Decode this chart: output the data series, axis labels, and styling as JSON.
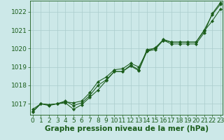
{
  "background_color": "#cce8e8",
  "grid_color": "#aacccc",
  "line_color": "#1a5c1a",
  "marker_color": "#1a5c1a",
  "xlabel": "Graphe pression niveau de la mer (hPa)",
  "xlabel_fontsize": 7.5,
  "tick_fontsize": 6.5,
  "xlim": [
    -0.3,
    23.3
  ],
  "ylim": [
    1016.4,
    1022.6
  ],
  "yticks": [
    1017,
    1018,
    1019,
    1020,
    1021,
    1022
  ],
  "xticks": [
    0,
    1,
    2,
    3,
    4,
    5,
    6,
    7,
    8,
    9,
    10,
    11,
    12,
    13,
    14,
    15,
    16,
    17,
    18,
    19,
    20,
    21,
    22,
    23
  ],
  "series": [
    [
      1016.6,
      1017.0,
      1016.95,
      1017.0,
      1017.15,
      1016.9,
      1017.05,
      1017.45,
      1018.0,
      1018.3,
      1018.75,
      1018.75,
      1019.1,
      1018.85,
      1019.95,
      1020.0,
      1020.5,
      1020.35,
      1020.35,
      1020.35,
      1020.35,
      1021.0,
      1021.85,
      1022.4
    ],
    [
      1016.7,
      1017.0,
      1016.95,
      1017.0,
      1017.1,
      1017.05,
      1017.15,
      1017.6,
      1018.2,
      1018.45,
      1018.85,
      1018.9,
      1019.2,
      1019.0,
      1019.85,
      1020.05,
      1020.45,
      1020.35,
      1020.35,
      1020.35,
      1020.35,
      1020.95,
      1021.5,
      1022.15
    ],
    [
      1016.55,
      1017.0,
      1016.9,
      1017.0,
      1017.05,
      1016.7,
      1016.95,
      1017.35,
      1017.75,
      1018.25,
      1018.75,
      1018.75,
      1019.05,
      1018.8,
      1019.85,
      1019.95,
      1020.45,
      1020.25,
      1020.25,
      1020.25,
      1020.25,
      1020.85,
      1021.9,
      1022.5
    ]
  ]
}
